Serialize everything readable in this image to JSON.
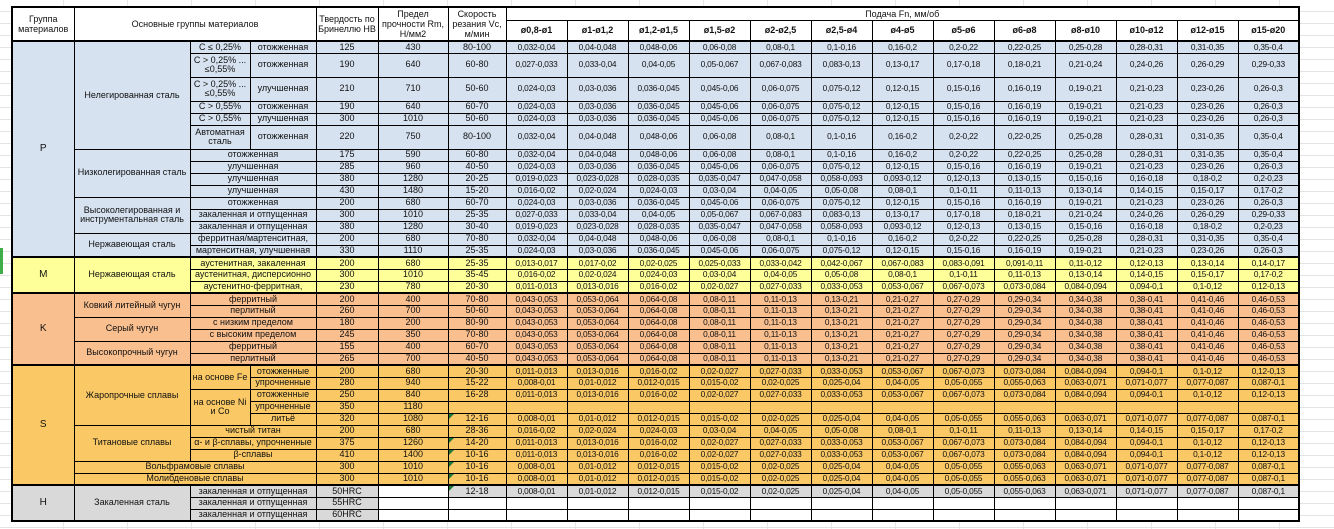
{
  "colors": {
    "group_P": "#d6e2f0",
    "group_M": "#ffff99",
    "group_K": "#fabf8f",
    "group_S": "#fac864",
    "group_H": "#d9d9d9",
    "table_border": "#000000",
    "comment_marker_green": "#1f7a33",
    "sheet_gridline": "#e3e3e3"
  },
  "header": {
    "col_group": "Группа материалов",
    "col_main": "Основные группы материалов",
    "col_hardness": "Твердость по Бринеллю НВ",
    "col_strength": "Предел прочности Rm, Н/мм2",
    "col_speed": "Скорость резания Vc, м/мин",
    "feed_title": "Подача Fn, мм/об",
    "diameters": [
      "ø0,8-ø1",
      "ø1-ø1,2",
      "ø1,2-ø1,5",
      "ø1,5-ø2",
      "ø2-ø2,5",
      "ø2,5-ø4",
      "ø4-ø5",
      "ø5-ø6",
      "ø6-ø8",
      "ø8-ø10",
      "ø10-ø12",
      "ø12-ø15",
      "ø15-ø20"
    ]
  },
  "feed_sets": {
    "F1": [
      "0,032-0,04",
      "0,04-0,048",
      "0,048-0,06",
      "0,06-0,08",
      "0,08-0,1",
      "0,1-0,16",
      "0,16-0,2",
      "0,2-0,22",
      "0,22-0,25",
      "0,25-0,28",
      "0,28-0,31",
      "0,31-0,35",
      "0,35-0,4"
    ],
    "F2": [
      "0,027-0,033",
      "0,033-0,04",
      "0,04-0,05",
      "0,05-0,067",
      "0,067-0,083",
      "0,083-0,13",
      "0,13-0,17",
      "0,17-0,18",
      "0,18-0,21",
      "0,21-0,24",
      "0,24-0,26",
      "0,26-0,29",
      "0,29-0,33"
    ],
    "F3": [
      "0,024-0,03",
      "0,03-0,036",
      "0,036-0,045",
      "0,045-0,06",
      "0,06-0,075",
      "0,075-0,12",
      "0,12-0,15",
      "0,15-0,16",
      "0,16-0,19",
      "0,19-0,21",
      "0,21-0,23",
      "0,23-0,26",
      "0,26-0,3"
    ],
    "F4": [
      "0,019-0,023",
      "0,023-0,028",
      "0,028-0,035",
      "0,035-0,047",
      "0,047-0,058",
      "0,058-0,093",
      "0,093-0,12",
      "0,12-0,13",
      "0,13-0,15",
      "0,15-0,16",
      "0,16-0,18",
      "0,18-0,2",
      "0,2-0,23"
    ],
    "F5": [
      "0,016-0,02",
      "0,02-0,024",
      "0,024-0,03",
      "0,03-0,04",
      "0,04-0,05",
      "0,05-0,08",
      "0,08-0,1",
      "0,1-0,11",
      "0,11-0,13",
      "0,13-0,14",
      "0,14-0,15",
      "0,15-0,17",
      "0,17-0,2"
    ],
    "F6": [
      "0,013-0,017",
      "0,017-0,02",
      "0,02-0,025",
      "0,025-0,033",
      "0,033-0,042",
      "0,042-0,067",
      "0,067-0,083",
      "0,083-0,091",
      "0,091-0,11",
      "0,11-0,12",
      "0,12-0,13",
      "0,13-0,14",
      "0,14-0,17"
    ],
    "F7": [
      "0,011-0,013",
      "0,013-0,016",
      "0,016-0,02",
      "0,02-0,027",
      "0,027-0,033",
      "0,033-0,053",
      "0,053-0,067",
      "0,067-0,073",
      "0,073-0,084",
      "0,084-0,094",
      "0,094-0,1",
      "0,1-0,12",
      "0,12-0,13"
    ],
    "F8": [
      "0,043-0,053",
      "0,053-0,064",
      "0,064-0,08",
      "0,08-0,11",
      "0,11-0,13",
      "0,13-0,21",
      "0,21-0,27",
      "0,27-0,29",
      "0,29-0,34",
      "0,34-0,38",
      "0,38-0,41",
      "0,41-0,46",
      "0,46-0,53"
    ],
    "F9": [
      "0,008-0,01",
      "0,01-0,012",
      "0,012-0,015",
      "0,015-0,02",
      "0,02-0,025",
      "0,025-0,04",
      "0,04-0,05",
      "0,05-0,055",
      "0,055-0,063",
      "0,063-0,071",
      "0,071-0,077",
      "0,077-0,087",
      "0,087-0,1"
    ]
  },
  "rows": [
    {
      "cls": "P gs",
      "group": {
        "label": "P",
        "span": 15
      },
      "mat": [
        {
          "t": "Нелегированная сталь",
          "rs": 6
        },
        {
          "t": "C ≤ 0,25%"
        },
        {
          "t": "отожженная"
        }
      ],
      "hb": "125",
      "rm": "430",
      "vc": "80-100",
      "feeds": "F1"
    },
    {
      "cls": "P tall",
      "mat": [
        {
          "t": "C > 0,25% ... ≤0,55%"
        },
        {
          "t": "отожженная"
        }
      ],
      "hb": "190",
      "rm": "640",
      "vc": "60-80",
      "feeds": "F2"
    },
    {
      "cls": "P tall",
      "mat": [
        {
          "t": "C > 0,25% ... ≤0,55%"
        },
        {
          "t": "улучшенная"
        }
      ],
      "hb": "210",
      "rm": "710",
      "vc": "50-60",
      "feeds": "F3"
    },
    {
      "cls": "P",
      "mat": [
        {
          "t": "C > 0,55%"
        },
        {
          "t": "отожженная"
        }
      ],
      "hb": "190",
      "rm": "640",
      "vc": "60-70",
      "feeds": "F3"
    },
    {
      "cls": "P",
      "mat": [
        {
          "t": "C > 0,55%"
        },
        {
          "t": "улучшенная"
        }
      ],
      "hb": "300",
      "rm": "1010",
      "vc": "50-60",
      "feeds": "F3"
    },
    {
      "cls": "P tall",
      "mat": [
        {
          "t": "Автоматная сталь"
        },
        {
          "t": "отожженная"
        }
      ],
      "hb": "220",
      "rm": "750",
      "vc": "80-100",
      "feeds": "F1"
    },
    {
      "cls": "P",
      "mat": [
        {
          "t": "Низколегированная сталь",
          "rs": 4
        },
        {
          "t": "отожженная",
          "cs": 2
        }
      ],
      "hb": "175",
      "rm": "590",
      "vc": "60-80",
      "feeds": "F1"
    },
    {
      "cls": "P",
      "mat": [
        {
          "t": "улучшенная",
          "cs": 2
        }
      ],
      "hb": "285",
      "rm": "960",
      "vc": "40-50",
      "feeds": "F3"
    },
    {
      "cls": "P",
      "mat": [
        {
          "t": "улучшенная",
          "cs": 2
        }
      ],
      "hb": "380",
      "rm": "1280",
      "vc": "20-25",
      "feeds": "F4"
    },
    {
      "cls": "P",
      "mat": [
        {
          "t": "улучшенная",
          "cs": 2
        }
      ],
      "hb": "430",
      "rm": "1480",
      "vc": "15-20",
      "feeds": "F5"
    },
    {
      "cls": "P",
      "mat": [
        {
          "t": "Высоколегированная и инструментальная сталь",
          "rs": 3
        },
        {
          "t": "отожженная",
          "cs": 2
        }
      ],
      "hb": "200",
      "rm": "680",
      "vc": "60-70",
      "feeds": "F3"
    },
    {
      "cls": "P",
      "mat": [
        {
          "t": "закаленная и отпущенная",
          "cs": 2
        }
      ],
      "hb": "300",
      "rm": "1010",
      "vc": "25-35",
      "feeds": "F2"
    },
    {
      "cls": "P",
      "mat": [
        {
          "t": "закаленная и отпущенная",
          "cs": 2
        }
      ],
      "hb": "380",
      "rm": "1280",
      "vc": "30-40",
      "feeds": "F4"
    },
    {
      "cls": "P",
      "mat": [
        {
          "t": "Нержавеющая сталь",
          "rs": 2
        },
        {
          "t": "ферритная/мартенситная,",
          "cs": 2
        }
      ],
      "hb": "200",
      "rm": "680",
      "vc": "70-80",
      "feeds": "F1"
    },
    {
      "cls": "P",
      "mat": [
        {
          "t": "мартенситная, улучшенная",
          "cs": 2
        }
      ],
      "hb": "330",
      "rm": "1110",
      "vc": "25-35",
      "feeds": "F3"
    },
    {
      "cls": "M gs",
      "group": {
        "label": "M",
        "span": 3
      },
      "mat": [
        {
          "t": "Нержавеющая сталь",
          "rs": 3
        },
        {
          "t": "аустенитная, закаленная",
          "cs": 2
        }
      ],
      "hb": "200",
      "rm": "680",
      "vc": "25-35",
      "feeds": "F6"
    },
    {
      "cls": "M",
      "mat": [
        {
          "t": "аустенитная, дисперсионно",
          "cs": 2
        }
      ],
      "hb": "300",
      "rm": "1010",
      "vc": "35-45",
      "feeds": "F5"
    },
    {
      "cls": "M",
      "mat": [
        {
          "t": "аустенитно-ферритная,",
          "cs": 2
        }
      ],
      "hb": "230",
      "rm": "780",
      "vc": "20-30",
      "feeds": "F7"
    },
    {
      "cls": "K gs",
      "group": {
        "label": "K",
        "span": 6
      },
      "mat": [
        {
          "t": "Ковкий литейный чугун",
          "rs": 2
        },
        {
          "t": "ферритный",
          "cs": 2
        }
      ],
      "hb": "200",
      "rm": "400",
      "vc": "70-80",
      "feeds": "F8"
    },
    {
      "cls": "K",
      "mat": [
        {
          "t": "перлитный",
          "cs": 2
        }
      ],
      "hb": "260",
      "rm": "700",
      "vc": "50-60",
      "feeds": "F8"
    },
    {
      "cls": "K",
      "mat": [
        {
          "t": "Серый чугун",
          "rs": 2
        },
        {
          "t": "с низким пределом",
          "cs": 2
        }
      ],
      "hb": "180",
      "rm": "200",
      "vc": "80-90",
      "feeds": "F8"
    },
    {
      "cls": "K",
      "mat": [
        {
          "t": "с высоким пределом",
          "cs": 2
        }
      ],
      "hb": "245",
      "rm": "350",
      "vc": "70-80",
      "feeds": "F8"
    },
    {
      "cls": "K",
      "mat": [
        {
          "t": "Высокопрочный чугун",
          "rs": 2
        },
        {
          "t": "ферритный",
          "cs": 2
        }
      ],
      "hb": "155",
      "rm": "400",
      "vc": "60-70",
      "feeds": "F8"
    },
    {
      "cls": "K",
      "mat": [
        {
          "t": "перлитный",
          "cs": 2
        }
      ],
      "hb": "265",
      "rm": "700",
      "vc": "40-50",
      "feeds": "F8"
    },
    {
      "cls": "S gs",
      "group": {
        "label": "S",
        "span": 10
      },
      "mat": [
        {
          "t": "Жаропрочные сплавы",
          "rs": 5
        },
        {
          "t": "на основе Fe",
          "rs": 2
        },
        {
          "t": "отожженные"
        }
      ],
      "hb": "200",
      "rm": "680",
      "vc": "20-30",
      "feeds": "F7"
    },
    {
      "cls": "S",
      "mat": [
        {
          "t": "упрочненные"
        }
      ],
      "hb": "280",
      "rm": "940",
      "vc": "15-22",
      "feeds": "F9"
    },
    {
      "cls": "S",
      "mat": [
        {
          "t": "на основе Ni и Co",
          "rs": 3
        },
        {
          "t": "отожженные"
        }
      ],
      "hb": "250",
      "rm": "840",
      "vc": "16-28",
      "feeds": "F7"
    },
    {
      "cls": "S",
      "mat": [
        {
          "t": "упрочненные"
        }
      ],
      "hb": "350",
      "rm": "1180",
      "vc": "",
      "feeds": ""
    },
    {
      "cls": "S",
      "mat": [
        {
          "t": "литьё"
        }
      ],
      "hb": "320",
      "rm": "1080",
      "vc": "12-16",
      "vcflag": true,
      "feeds": "F9"
    },
    {
      "cls": "S",
      "mat": [
        {
          "t": "Титановые сплавы",
          "rs": 3
        },
        {
          "t": "чистый титан",
          "cs": 2
        }
      ],
      "hb": "200",
      "rm": "680",
      "vc": "28-36",
      "feeds": "F5"
    },
    {
      "cls": "S",
      "mat": [
        {
          "t": "α- и β-сплавы, упрочненные",
          "cs": 2
        }
      ],
      "hb": "375",
      "rm": "1260",
      "vc": "14-20",
      "vcflag": true,
      "feeds": "F7"
    },
    {
      "cls": "S",
      "mat": [
        {
          "t": "β-сплавы",
          "cs": 2
        }
      ],
      "hb": "410",
      "rm": "1400",
      "vc": "10-16",
      "vcflag": true,
      "feeds": "F7"
    },
    {
      "cls": "S",
      "mat": [
        {
          "t": "Вольфрамовые сплавы",
          "cs": 3
        }
      ],
      "hb": "300",
      "rm": "1010",
      "vc": "10-16",
      "vcflag": true,
      "feeds": "F9"
    },
    {
      "cls": "S",
      "mat": [
        {
          "t": "Молибденовые сплавы",
          "cs": 3
        }
      ],
      "hb": "300",
      "rm": "1010",
      "vc": "10-16",
      "vcflag": true,
      "feeds": "F9"
    },
    {
      "cls": "H gs",
      "group": {
        "label": "H",
        "span": 3
      },
      "mat": [
        {
          "t": "Закаленная сталь",
          "rs": 3
        },
        {
          "t": "закаленная и отпущенная",
          "cs": 2
        }
      ],
      "hb": "50HRC",
      "rm": "",
      "vc": "12-18",
      "vcflag": true,
      "feeds": "F9",
      "wh": [
        "rm"
      ]
    },
    {
      "cls": "H",
      "mat": [
        {
          "t": "закаленная и отпущенная",
          "cs": 2
        }
      ],
      "hb": "55HRC",
      "rm": "",
      "vc": "",
      "feeds": "",
      "wh": [
        "rm",
        "vc",
        "feeds"
      ]
    },
    {
      "cls": "H",
      "mat": [
        {
          "t": "закаленная и отпущенная",
          "cs": 2
        }
      ],
      "hb": "60HRC",
      "rm": "",
      "vc": "",
      "feeds": "",
      "wh": [
        "rm",
        "vc",
        "feeds"
      ]
    }
  ]
}
